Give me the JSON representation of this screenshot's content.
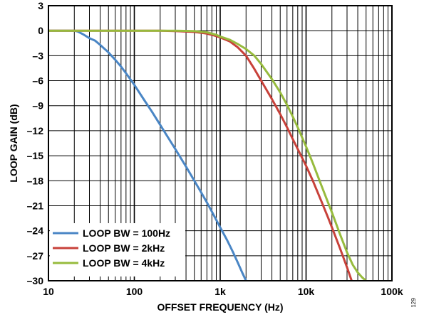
{
  "chart_data": {
    "type": "line",
    "title": "",
    "xlabel": "OFFSET FREQUENCY (Hz)",
    "ylabel": "LOOP GAIN (dB)",
    "x_scale": "log",
    "xlim": [
      10,
      100000
    ],
    "ylim": [
      -30,
      3
    ],
    "x_ticks": [
      {
        "value": 10,
        "label": "10"
      },
      {
        "value": 100,
        "label": "100"
      },
      {
        "value": 1000,
        "label": "1k"
      },
      {
        "value": 10000,
        "label": "10k"
      },
      {
        "value": 100000,
        "label": "100k"
      }
    ],
    "y_ticks": [
      {
        "value": 3,
        "label": "3"
      },
      {
        "value": 0,
        "label": "0"
      },
      {
        "value": -3,
        "label": "–3"
      },
      {
        "value": -6,
        "label": "–6"
      },
      {
        "value": -9,
        "label": "–9"
      },
      {
        "value": -12,
        "label": "–12"
      },
      {
        "value": -15,
        "label": "–15"
      },
      {
        "value": -18,
        "label": "–18"
      },
      {
        "value": -21,
        "label": "–21"
      },
      {
        "value": -24,
        "label": "–24"
      },
      {
        "value": -27,
        "label": "–27"
      },
      {
        "value": -30,
        "label": "–30"
      }
    ],
    "grid": true,
    "legend_position": "bottom-left",
    "series": [
      {
        "name": "LOOP BW = 100Hz",
        "color": "#4a86c5",
        "points": [
          [
            10,
            0
          ],
          [
            20,
            0
          ],
          [
            22,
            -0.1
          ],
          [
            25,
            -0.4
          ],
          [
            30,
            -0.9
          ],
          [
            35,
            -1.2
          ],
          [
            40,
            -1.7
          ],
          [
            50,
            -2.6
          ],
          [
            60,
            -3.5
          ],
          [
            70,
            -4.3
          ],
          [
            80,
            -5.1
          ],
          [
            100,
            -6.5
          ],
          [
            130,
            -8.3
          ],
          [
            160,
            -9.7
          ],
          [
            200,
            -11.3
          ],
          [
            250,
            -12.9
          ],
          [
            300,
            -14.2
          ],
          [
            400,
            -16.3
          ],
          [
            500,
            -18.0
          ],
          [
            600,
            -19.4
          ],
          [
            700,
            -20.6
          ],
          [
            800,
            -21.7
          ],
          [
            900,
            -22.7
          ],
          [
            1000,
            -23.6
          ],
          [
            1200,
            -25.1
          ],
          [
            1400,
            -26.5
          ],
          [
            1600,
            -27.8
          ],
          [
            1800,
            -29.0
          ],
          [
            2000,
            -30
          ]
        ]
      },
      {
        "name": "LOOP BW = 2kHz",
        "color": "#c8413a",
        "points": [
          [
            10,
            0
          ],
          [
            100,
            0
          ],
          [
            200,
            0
          ],
          [
            300,
            -0.05
          ],
          [
            400,
            -0.1
          ],
          [
            500,
            -0.15
          ],
          [
            600,
            -0.25
          ],
          [
            700,
            -0.35
          ],
          [
            800,
            -0.5
          ],
          [
            1000,
            -0.8
          ],
          [
            1300,
            -1.3
          ],
          [
            1600,
            -2.0
          ],
          [
            2000,
            -3.0
          ],
          [
            2500,
            -4.6
          ],
          [
            3000,
            -6.0
          ],
          [
            4000,
            -8.2
          ],
          [
            5000,
            -10.0
          ],
          [
            6000,
            -11.6
          ],
          [
            7000,
            -13.0
          ],
          [
            8000,
            -14.2
          ],
          [
            10000,
            -16.2
          ],
          [
            12000,
            -18.0
          ],
          [
            15000,
            -20.4
          ],
          [
            18000,
            -22.4
          ],
          [
            20000,
            -23.6
          ],
          [
            25000,
            -26.2
          ],
          [
            30000,
            -28.4
          ],
          [
            34000,
            -30
          ]
        ]
      },
      {
        "name": "LOOP BW = 4kHz",
        "color": "#97bb3d",
        "points": [
          [
            10,
            0
          ],
          [
            100,
            0
          ],
          [
            300,
            0
          ],
          [
            500,
            -0.05
          ],
          [
            700,
            -0.2
          ],
          [
            900,
            -0.5
          ],
          [
            1000,
            -0.7
          ],
          [
            1300,
            -1.1
          ],
          [
            1600,
            -1.6
          ],
          [
            2000,
            -2.2
          ],
          [
            2500,
            -3.0
          ],
          [
            3000,
            -4.0
          ],
          [
            4000,
            -5.8
          ],
          [
            5000,
            -7.4
          ],
          [
            6000,
            -8.9
          ],
          [
            7000,
            -10.3
          ],
          [
            8000,
            -11.6
          ],
          [
            10000,
            -13.9
          ],
          [
            12000,
            -15.9
          ],
          [
            15000,
            -18.5
          ],
          [
            18000,
            -20.6
          ],
          [
            20000,
            -21.8
          ],
          [
            25000,
            -24.5
          ],
          [
            30000,
            -26.6
          ],
          [
            35000,
            -28.1
          ],
          [
            40000,
            -29.0
          ],
          [
            45000,
            -29.6
          ],
          [
            50000,
            -30
          ]
        ]
      }
    ]
  },
  "figure_id": "129"
}
